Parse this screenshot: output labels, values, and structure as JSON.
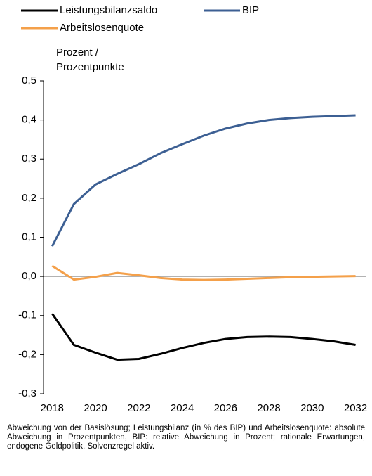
{
  "chart_data": {
    "type": "line",
    "y_label": [
      "Prozent /",
      "Prozentpunkte"
    ],
    "x": [
      2018,
      2019,
      2020,
      2021,
      2022,
      2023,
      2024,
      2025,
      2026,
      2027,
      2028,
      2029,
      2030,
      2031,
      2032
    ],
    "xlim": [
      2017.6,
      2032.5
    ],
    "xticks": [
      2018,
      2020,
      2022,
      2024,
      2026,
      2028,
      2030,
      2032
    ],
    "ylim": [
      -0.3,
      0.5
    ],
    "yticks": [
      {
        "value": 0.5,
        "label": "0,5"
      },
      {
        "value": 0.4,
        "label": "0,4"
      },
      {
        "value": 0.3,
        "label": "0,3"
      },
      {
        "value": 0.2,
        "label": "0,2"
      },
      {
        "value": 0.1,
        "label": "0,1"
      },
      {
        "value": 0,
        "label": "0,0"
      },
      {
        "value": -0.1,
        "label": "-0,1"
      },
      {
        "value": -0.2,
        "label": "-0,2"
      },
      {
        "value": -0.3,
        "label": "-0,3"
      }
    ],
    "series": [
      {
        "name": "Leistungsbilanzsaldo",
        "color": "#000000",
        "values": [
          -0.095,
          -0.175,
          -0.195,
          -0.213,
          -0.211,
          -0.198,
          -0.183,
          -0.17,
          -0.16,
          -0.155,
          -0.154,
          -0.155,
          -0.16,
          -0.166,
          -0.175
        ]
      },
      {
        "name": "BIP",
        "color": "#3c5f93",
        "values": [
          0.077,
          0.185,
          0.235,
          0.262,
          0.287,
          0.315,
          0.338,
          0.36,
          0.378,
          0.391,
          0.4,
          0.405,
          0.408,
          0.41,
          0.412
        ]
      },
      {
        "name": "Arbeitslosenquote",
        "color": "#f4a04a",
        "values": [
          0.027,
          -0.008,
          -0.001,
          0.009,
          0.003,
          -0.004,
          -0.008,
          -0.009,
          -0.008,
          -0.006,
          -0.004,
          -0.002,
          -0.001,
          0,
          0.001
        ]
      }
    ],
    "note": "Abweichung von der Basislösung; Leistungsbilanz (in % des BIP) und Arbeitslosenquote: absolute Abweichung in Prozentpunkten, BIP: relative Abweichung in Prozent; rationale Erwartungen, endogene Geldpolitik, Solvenzregel aktiv."
  }
}
